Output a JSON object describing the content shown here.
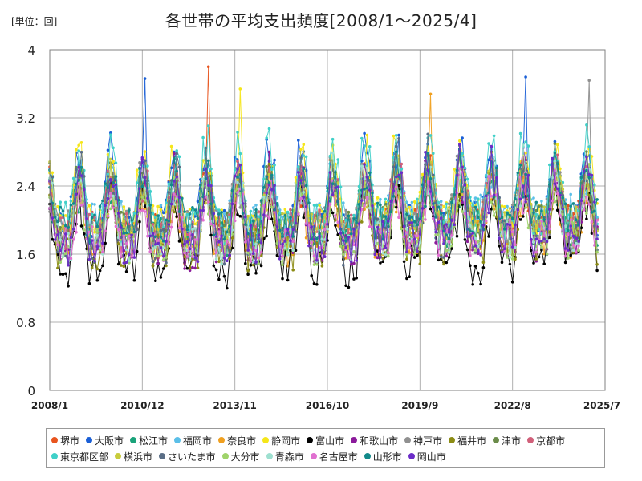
{
  "chart_data": {
    "type": "line",
    "title": "各世帯の平均支出頻度[2008/1～2025/4]",
    "unit_label": "[単位：回]",
    "x_ticks": [
      "2008/1",
      "2010/12",
      "2013/11",
      "2016/10",
      "2019/9",
      "2022/8",
      "2025/7"
    ],
    "y_ticks": [
      "0",
      "0.8",
      "1.6",
      "2.4",
      "3.2",
      "4"
    ],
    "ylim": [
      0,
      4
    ],
    "x_range": [
      "2008/1",
      "2025/7"
    ],
    "grid": true,
    "legend_position": "bottom",
    "series": [
      {
        "name": "堺市",
        "color": "#e8541e"
      },
      {
        "name": "大阪市",
        "color": "#1a5fd6"
      },
      {
        "name": "松江市",
        "color": "#1aa37a"
      },
      {
        "name": "福岡市",
        "color": "#5bbfe8"
      },
      {
        "name": "奈良市",
        "color": "#f0a020"
      },
      {
        "name": "静岡市",
        "color": "#f5e61a"
      },
      {
        "name": "富山市",
        "color": "#000000"
      },
      {
        "name": "和歌山市",
        "color": "#8b1a9b"
      },
      {
        "name": "神戸市",
        "color": "#909090"
      },
      {
        "name": "福井市",
        "color": "#8c8c14"
      },
      {
        "name": "津市",
        "color": "#6b8c4a"
      },
      {
        "name": "京都市",
        "color": "#d1607a"
      },
      {
        "name": "東京都区部",
        "color": "#40d0c8"
      },
      {
        "name": "横浜市",
        "color": "#c8cc3c"
      },
      {
        "name": "さいたま市",
        "color": "#5a6e86"
      },
      {
        "name": "大分市",
        "color": "#9fd36a"
      },
      {
        "name": "青森市",
        "color": "#9ee0d0"
      },
      {
        "name": "名古屋市",
        "color": "#e070d0"
      },
      {
        "name": "山形市",
        "color": "#128a8a"
      },
      {
        "name": "岡山市",
        "color": "#6b2cc8"
      }
    ],
    "peaks": [
      {
        "series": "堺市",
        "date": "2013/1",
        "value": 3.8
      },
      {
        "series": "大阪市",
        "date": "2023/1",
        "value": 3.68
      },
      {
        "series": "神戸市",
        "date": "2025/1",
        "value": 3.64
      },
      {
        "series": "大阪市",
        "date": "2011/1",
        "value": 3.66
      },
      {
        "series": "静岡市",
        "date": "2014/1",
        "value": 3.54
      },
      {
        "series": "奈良市",
        "date": "2020/1",
        "value": 3.48
      }
    ]
  }
}
